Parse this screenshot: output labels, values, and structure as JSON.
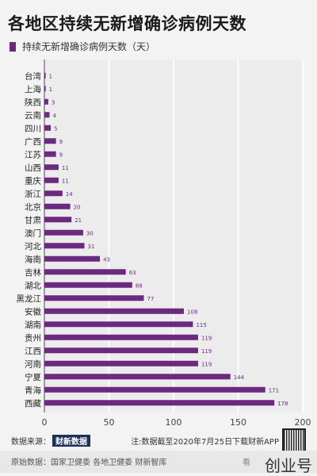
{
  "title": "各地区持续无新增确诊病例天数",
  "legend_label": "持续无新增确诊病例天数（天）",
  "colors": {
    "bar": "#6b2a7f",
    "grid": "#ffffff",
    "axis": "#444444"
  },
  "chart_data": {
    "type": "bar",
    "orientation": "horizontal",
    "title": "各地区持续无新增确诊病例天数",
    "xlabel": "",
    "ylabel": "",
    "xlim": [
      0,
      200
    ],
    "xticks": [
      0,
      50,
      100,
      150,
      200
    ],
    "grid": true,
    "legend_position": "top-left",
    "series": [
      {
        "name": "持续无新增确诊病例天数（天）"
      }
    ],
    "categories": [
      "台湾",
      "上海",
      "陕西",
      "云南",
      "四川",
      "广西",
      "江苏",
      "山西",
      "重庆",
      "浙江",
      "北京",
      "甘肃",
      "澳门",
      "河北",
      "海南",
      "吉林",
      "湖北",
      "黑龙江",
      "安徽",
      "湖南",
      "贵州",
      "江西",
      "河南",
      "宁夏",
      "青海",
      "西藏"
    ],
    "values": [
      1,
      1,
      3,
      4,
      5,
      9,
      9,
      11,
      11,
      14,
      20,
      21,
      30,
      31,
      43,
      63,
      68,
      77,
      108,
      115,
      119,
      119,
      119,
      144,
      171,
      178
    ]
  },
  "footer": {
    "source_label": "数据来源：",
    "brand": "财新数据",
    "note": "注:数据截至2020年7月25日下载财新APP",
    "origin": "原始数据：国家卫健委 各地卫健委 财新智库",
    "origin_tail": "看",
    "watermark": "创业号"
  }
}
